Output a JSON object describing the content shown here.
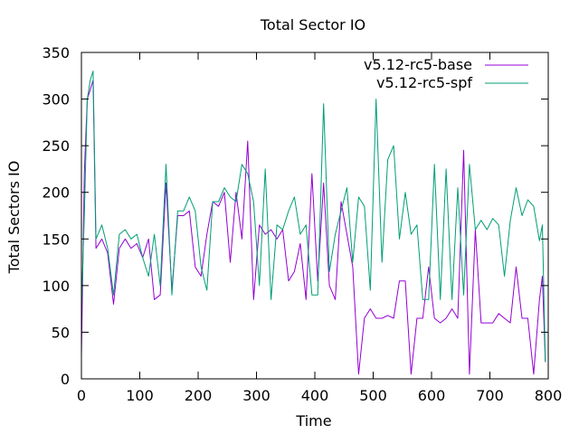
{
  "chart_data": {
    "type": "line",
    "title": "Total Sector IO",
    "xlabel": "Time",
    "ylabel": "Total Sectors IO",
    "xlim": [
      0,
      800
    ],
    "ylim": [
      0,
      350
    ],
    "xticks": [
      0,
      100,
      200,
      300,
      400,
      500,
      600,
      700,
      800
    ],
    "yticks": [
      0,
      50,
      100,
      150,
      200,
      250,
      300,
      350
    ],
    "legend_position": "top-right",
    "grid": false,
    "series": [
      {
        "name": "v5.12-rc5-base",
        "color": "#9400d3",
        "points": [
          [
            0,
            25
          ],
          [
            5,
            220
          ],
          [
            10,
            300
          ],
          [
            15,
            310
          ],
          [
            20,
            320
          ],
          [
            25,
            140
          ],
          [
            35,
            150
          ],
          [
            45,
            135
          ],
          [
            55,
            80
          ],
          [
            65,
            140
          ],
          [
            75,
            150
          ],
          [
            85,
            140
          ],
          [
            95,
            145
          ],
          [
            105,
            130
          ],
          [
            115,
            150
          ],
          [
            125,
            85
          ],
          [
            135,
            90
          ],
          [
            145,
            210
          ],
          [
            155,
            95
          ],
          [
            165,
            175
          ],
          [
            175,
            175
          ],
          [
            185,
            180
          ],
          [
            195,
            120
          ],
          [
            205,
            110
          ],
          [
            215,
            155
          ],
          [
            225,
            190
          ],
          [
            235,
            185
          ],
          [
            245,
            200
          ],
          [
            255,
            125
          ],
          [
            265,
            200
          ],
          [
            275,
            150
          ],
          [
            285,
            255
          ],
          [
            295,
            85
          ],
          [
            305,
            165
          ],
          [
            315,
            155
          ],
          [
            325,
            160
          ],
          [
            335,
            150
          ],
          [
            345,
            160
          ],
          [
            355,
            105
          ],
          [
            365,
            115
          ],
          [
            375,
            145
          ],
          [
            385,
            85
          ],
          [
            395,
            220
          ],
          [
            405,
            105
          ],
          [
            415,
            210
          ],
          [
            425,
            100
          ],
          [
            435,
            85
          ],
          [
            445,
            190
          ],
          [
            455,
            155
          ],
          [
            465,
            120
          ],
          [
            475,
            5
          ],
          [
            485,
            65
          ],
          [
            495,
            75
          ],
          [
            505,
            65
          ],
          [
            515,
            65
          ],
          [
            525,
            68
          ],
          [
            535,
            65
          ],
          [
            545,
            105
          ],
          [
            555,
            105
          ],
          [
            565,
            5
          ],
          [
            575,
            65
          ],
          [
            585,
            65
          ],
          [
            595,
            120
          ],
          [
            605,
            65
          ],
          [
            615,
            60
          ],
          [
            625,
            65
          ],
          [
            635,
            75
          ],
          [
            645,
            65
          ],
          [
            655,
            245
          ],
          [
            665,
            5
          ],
          [
            675,
            160
          ],
          [
            685,
            60
          ],
          [
            695,
            60
          ],
          [
            705,
            60
          ],
          [
            715,
            70
          ],
          [
            725,
            65
          ],
          [
            735,
            60
          ],
          [
            745,
            120
          ],
          [
            755,
            65
          ],
          [
            765,
            65
          ],
          [
            775,
            5
          ],
          [
            785,
            85
          ],
          [
            790,
            110
          ],
          [
            795,
            18
          ]
        ]
      },
      {
        "name": "v5.12-rc5-spf",
        "color": "#009e73",
        "points": [
          [
            0,
            75
          ],
          [
            5,
            175
          ],
          [
            10,
            300
          ],
          [
            15,
            320
          ],
          [
            20,
            330
          ],
          [
            25,
            150
          ],
          [
            35,
            165
          ],
          [
            45,
            140
          ],
          [
            55,
            90
          ],
          [
            65,
            155
          ],
          [
            75,
            160
          ],
          [
            85,
            150
          ],
          [
            95,
            155
          ],
          [
            105,
            130
          ],
          [
            115,
            110
          ],
          [
            125,
            155
          ],
          [
            135,
            100
          ],
          [
            145,
            230
          ],
          [
            155,
            90
          ],
          [
            165,
            180
          ],
          [
            175,
            180
          ],
          [
            185,
            195
          ],
          [
            195,
            180
          ],
          [
            205,
            120
          ],
          [
            215,
            95
          ],
          [
            225,
            190
          ],
          [
            235,
            190
          ],
          [
            245,
            205
          ],
          [
            255,
            195
          ],
          [
            265,
            190
          ],
          [
            275,
            230
          ],
          [
            285,
            220
          ],
          [
            295,
            190
          ],
          [
            305,
            100
          ],
          [
            315,
            225
          ],
          [
            325,
            85
          ],
          [
            335,
            165
          ],
          [
            345,
            160
          ],
          [
            355,
            180
          ],
          [
            365,
            195
          ],
          [
            375,
            155
          ],
          [
            385,
            165
          ],
          [
            395,
            90
          ],
          [
            405,
            90
          ],
          [
            415,
            295
          ],
          [
            425,
            115
          ],
          [
            435,
            155
          ],
          [
            445,
            180
          ],
          [
            455,
            205
          ],
          [
            465,
            125
          ],
          [
            475,
            195
          ],
          [
            485,
            185
          ],
          [
            495,
            95
          ],
          [
            505,
            300
          ],
          [
            515,
            125
          ],
          [
            525,
            235
          ],
          [
            535,
            250
          ],
          [
            545,
            150
          ],
          [
            555,
            200
          ],
          [
            565,
            155
          ],
          [
            575,
            165
          ],
          [
            585,
            85
          ],
          [
            595,
            85
          ],
          [
            605,
            230
          ],
          [
            615,
            85
          ],
          [
            625,
            225
          ],
          [
            635,
            85
          ],
          [
            645,
            205
          ],
          [
            655,
            90
          ],
          [
            665,
            230
          ],
          [
            675,
            160
          ],
          [
            685,
            170
          ],
          [
            695,
            160
          ],
          [
            705,
            172
          ],
          [
            715,
            165
          ],
          [
            725,
            110
          ],
          [
            735,
            170
          ],
          [
            745,
            205
          ],
          [
            755,
            175
          ],
          [
            765,
            192
          ],
          [
            775,
            185
          ],
          [
            785,
            148
          ],
          [
            790,
            165
          ],
          [
            795,
            18
          ]
        ]
      }
    ]
  }
}
